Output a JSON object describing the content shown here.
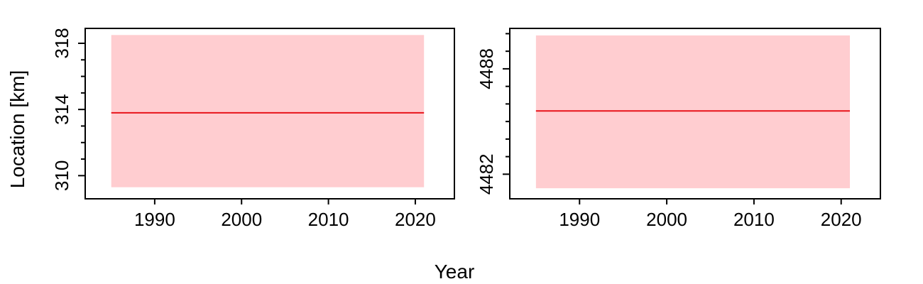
{
  "figure": {
    "xlabel": "Year",
    "ylabel": "Location [km]"
  },
  "colors": {
    "line": "#e8141b",
    "band": "#ffcdd0",
    "frame": "#000000"
  },
  "chart_data": [
    {
      "type": "line",
      "xlim": [
        1982,
        2024.5
      ],
      "ylim": [
        308.6,
        318.9
      ],
      "x_ticks": [
        1990,
        2000,
        2010,
        2020
      ],
      "x_tick_labels": [
        "1990",
        "2000",
        "2010",
        "2020"
      ],
      "y_major_ticks": [
        310,
        314,
        318
      ],
      "y_tick_labels": [
        "310",
        "314",
        "318"
      ],
      "y_minor_ticks": [
        311,
        312,
        313,
        315,
        316,
        317
      ],
      "series": [
        {
          "x": [
            1985,
            2021
          ],
          "y": [
            313.8,
            313.8
          ],
          "lower": 309.3,
          "upper": 318.5
        }
      ]
    },
    {
      "type": "line",
      "xlim": [
        1982,
        2024.5
      ],
      "ylim": [
        4480.6,
        4490.3
      ],
      "x_ticks": [
        1990,
        2000,
        2010,
        2020
      ],
      "x_tick_labels": [
        "1990",
        "2000",
        "2010",
        "2020"
      ],
      "y_major_ticks": [
        4482,
        4488
      ],
      "y_tick_labels": [
        "4482",
        "4488"
      ],
      "y_minor_ticks": [
        4483,
        4484,
        4485,
        4486,
        4487,
        4489,
        4490
      ],
      "series": [
        {
          "x": [
            1985,
            2021
          ],
          "y": [
            4485.6,
            4485.6
          ],
          "lower": 4481.2,
          "upper": 4489.9
        }
      ]
    }
  ]
}
